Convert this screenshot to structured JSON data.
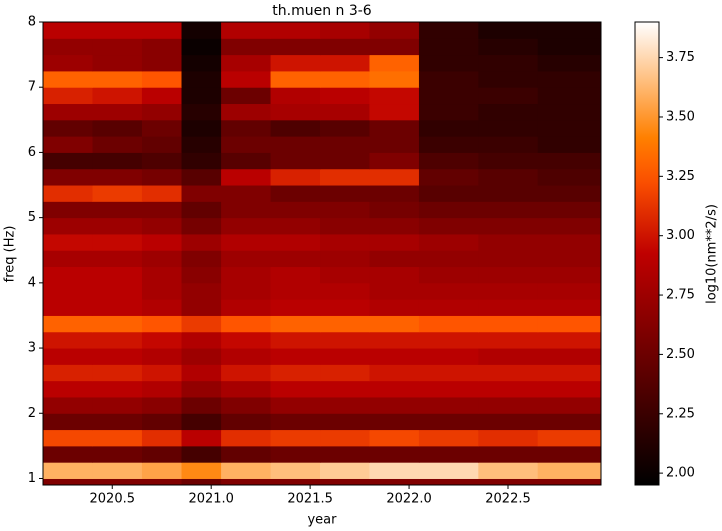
{
  "chart_data": {
    "type": "heatmap",
    "title": "th.muen n 3-6",
    "xlabel": "year",
    "ylabel": "freq (Hz)",
    "colorbar_label": "log10(nm**2/s)",
    "colormap": "gist_heat",
    "xlim": [
      2020.15,
      2022.97
    ],
    "ylim": [
      0.9,
      8
    ],
    "clim": [
      1.95,
      3.9
    ],
    "xticks": [
      2020.5,
      {
        "value": 2021,
        "label": "2021.0"
      },
      2021.5,
      {
        "value": 2022,
        "label": "2022.0"
      },
      2022.5
    ],
    "yticks": [
      1,
      2,
      3,
      4,
      5,
      6,
      7,
      8
    ],
    "cticks": [
      {
        "value": 2,
        "label": "2.00"
      },
      {
        "value": 2.25,
        "label": "2.25"
      },
      {
        "value": 2.5,
        "label": "2.50"
      },
      {
        "value": 2.75,
        "label": "2.75"
      },
      {
        "value": 3,
        "label": "3.00"
      },
      {
        "value": 3.25,
        "label": "3.25"
      },
      {
        "value": 3.5,
        "label": "3.50"
      },
      {
        "value": 3.75,
        "label": "3.75"
      }
    ],
    "x_edges": [
      2020.15,
      2020.4,
      2020.65,
      2020.85,
      2021.05,
      2021.3,
      2021.55,
      2021.8,
      2022.05,
      2022.35,
      2022.65,
      2022.97
    ],
    "y_edges": [
      0.9,
      1.0,
      1.25,
      1.5,
      1.75,
      2.0,
      2.25,
      2.5,
      2.75,
      3.0,
      3.25,
      3.5,
      3.75,
      4.0,
      4.25,
      4.5,
      4.75,
      5.0,
      5.25,
      5.5,
      5.75,
      6.0,
      6.25,
      6.5,
      6.75,
      7.0,
      7.25,
      7.5,
      7.75,
      8.0
    ],
    "z": [
      [
        2.6,
        2.6,
        2.6,
        2.5,
        2.6,
        2.6,
        2.6,
        2.6,
        2.6,
        2.6,
        2.6
      ],
      [
        3.6,
        3.6,
        3.55,
        3.45,
        3.6,
        3.65,
        3.7,
        3.75,
        3.75,
        3.65,
        3.6
      ],
      [
        2.5,
        2.5,
        2.45,
        2.3,
        2.45,
        2.5,
        2.5,
        2.5,
        2.5,
        2.5,
        2.5
      ],
      [
        3.2,
        3.2,
        3.1,
        2.9,
        3.1,
        3.15,
        3.15,
        3.2,
        3.15,
        3.1,
        3.15
      ],
      [
        2.5,
        2.5,
        2.45,
        2.3,
        2.45,
        2.5,
        2.5,
        2.5,
        2.5,
        2.5,
        2.5
      ],
      [
        2.7,
        2.7,
        2.65,
        2.5,
        2.6,
        2.7,
        2.7,
        2.7,
        2.7,
        2.7,
        2.7
      ],
      [
        2.9,
        2.9,
        2.85,
        2.7,
        2.8,
        2.9,
        2.9,
        2.9,
        2.9,
        2.9,
        2.9
      ],
      [
        3.05,
        3.05,
        3.0,
        2.85,
        3.0,
        3.05,
        3.05,
        3.0,
        3.0,
        3.0,
        3.0
      ],
      [
        2.9,
        2.9,
        2.85,
        2.75,
        2.85,
        2.9,
        2.9,
        2.9,
        2.9,
        2.85,
        2.85
      ],
      [
        3.0,
        3.0,
        2.95,
        2.85,
        2.95,
        3.0,
        3.0,
        3.0,
        3.0,
        3.0,
        3.0
      ],
      [
        3.3,
        3.3,
        3.25,
        3.15,
        3.25,
        3.3,
        3.3,
        3.3,
        3.25,
        3.25,
        3.25
      ],
      [
        2.9,
        2.9,
        2.85,
        2.7,
        2.85,
        2.9,
        2.9,
        2.85,
        2.85,
        2.85,
        2.85
      ],
      [
        2.9,
        2.9,
        2.8,
        2.7,
        2.8,
        2.85,
        2.85,
        2.8,
        2.8,
        2.8,
        2.8
      ],
      [
        2.9,
        2.9,
        2.8,
        2.65,
        2.8,
        2.85,
        2.8,
        2.8,
        2.75,
        2.75,
        2.75
      ],
      [
        2.8,
        2.8,
        2.75,
        2.6,
        2.75,
        2.75,
        2.75,
        2.7,
        2.7,
        2.7,
        2.7
      ],
      [
        2.95,
        2.95,
        2.9,
        2.75,
        2.85,
        2.85,
        2.8,
        2.8,
        2.75,
        2.7,
        2.7
      ],
      [
        2.75,
        2.75,
        2.7,
        2.55,
        2.7,
        2.7,
        2.65,
        2.65,
        2.6,
        2.6,
        2.6
      ],
      [
        2.6,
        2.6,
        2.6,
        2.45,
        2.6,
        2.6,
        2.6,
        2.55,
        2.5,
        2.5,
        2.5
      ],
      [
        3.1,
        3.15,
        3.1,
        2.6,
        2.6,
        2.5,
        2.5,
        2.5,
        2.4,
        2.4,
        2.4
      ],
      [
        2.6,
        2.6,
        2.55,
        2.4,
        2.9,
        3.05,
        3.1,
        3.1,
        2.45,
        2.4,
        2.35
      ],
      [
        2.3,
        2.3,
        2.35,
        2.2,
        2.4,
        2.5,
        2.5,
        2.6,
        2.35,
        2.3,
        2.3
      ],
      [
        2.6,
        2.5,
        2.45,
        2.15,
        2.5,
        2.5,
        2.5,
        2.5,
        2.25,
        2.25,
        2.2
      ],
      [
        2.45,
        2.4,
        2.5,
        2.1,
        2.45,
        2.35,
        2.4,
        2.5,
        2.2,
        2.2,
        2.2
      ],
      [
        2.75,
        2.75,
        2.7,
        2.15,
        2.75,
        2.8,
        2.8,
        2.95,
        2.25,
        2.2,
        2.2
      ],
      [
        3.05,
        3.0,
        2.9,
        2.1,
        2.5,
        2.85,
        2.9,
        2.95,
        2.25,
        2.25,
        2.2
      ],
      [
        3.3,
        3.3,
        3.25,
        2.1,
        2.9,
        3.3,
        3.3,
        3.35,
        2.25,
        2.2,
        2.2
      ],
      [
        2.75,
        2.7,
        2.65,
        2.05,
        2.8,
        3.0,
        3.0,
        3.3,
        2.2,
        2.2,
        2.15
      ],
      [
        2.7,
        2.7,
        2.65,
        2.0,
        2.6,
        2.6,
        2.6,
        2.6,
        2.2,
        2.15,
        2.1
      ],
      [
        2.9,
        2.9,
        2.9,
        2.05,
        2.85,
        2.85,
        2.8,
        2.7,
        2.2,
        2.1,
        2.1
      ]
    ]
  }
}
